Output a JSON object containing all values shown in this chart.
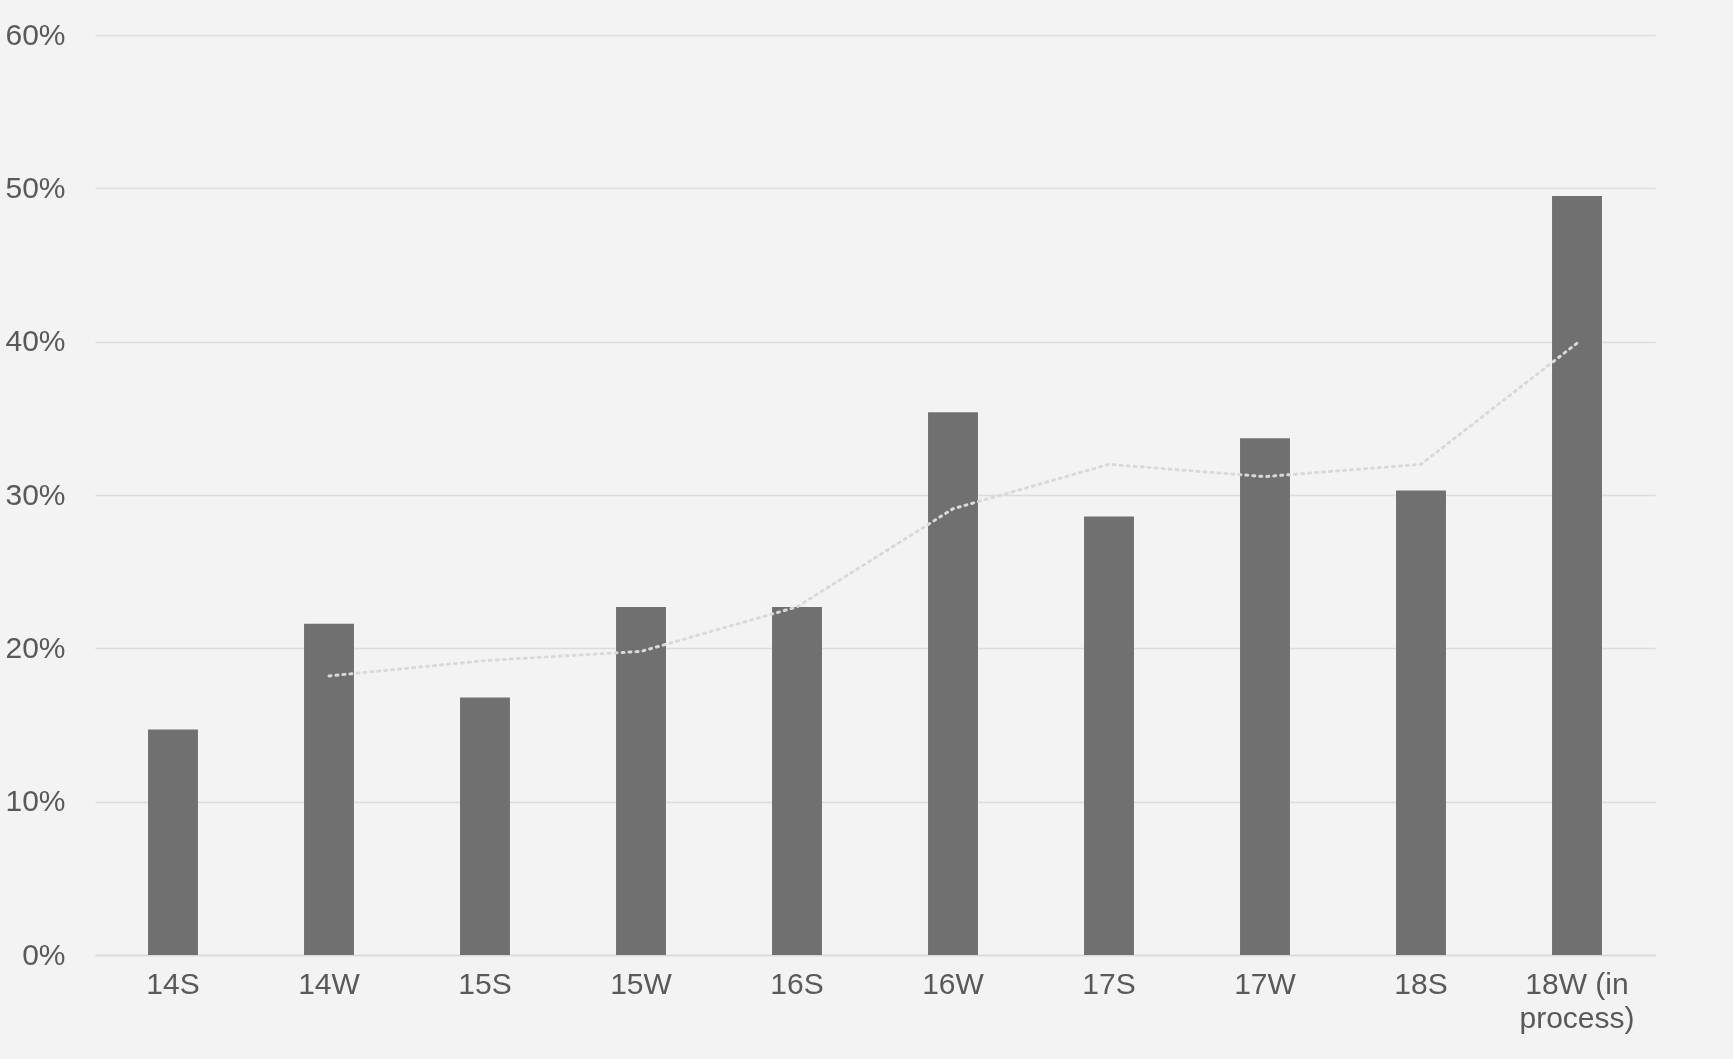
{
  "chart_data": {
    "type": "bar",
    "categories": [
      "14S",
      "14W",
      "15S",
      "15W",
      "16S",
      "16W",
      "17S",
      "17W",
      "18S",
      "18W (in process)"
    ],
    "series": [
      {
        "color": "#707070",
        "values": [
          14.7,
          21.6,
          16.8,
          22.7,
          22.7,
          35.4,
          28.6,
          33.7,
          30.3,
          49.5
        ]
      },
      {
        "type": "line",
        "color": "#d9d9d9",
        "line_style": "dotted",
        "marker": "none",
        "values": [
          null,
          18.2,
          19.2,
          19.8,
          22.7,
          29.1,
          32.0,
          31.2,
          32.0,
          39.9
        ]
      }
    ],
    "ylim": [
      0,
      60
    ],
    "yticks": [
      {
        "value": 0,
        "label": "0%"
      },
      {
        "value": 10,
        "label": "10%"
      },
      {
        "value": 20,
        "label": "20%"
      },
      {
        "value": 30,
        "label": "30%"
      },
      {
        "value": 40,
        "label": "40%"
      },
      {
        "value": 50,
        "label": "50%"
      },
      {
        "value": 60,
        "label": "60%"
      }
    ],
    "grid": "y"
  }
}
